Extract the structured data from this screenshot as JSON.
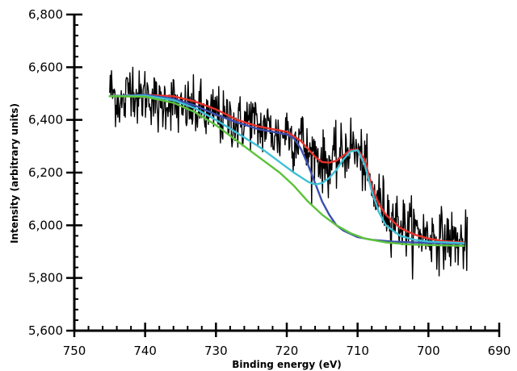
{
  "chart_data": {
    "type": "line",
    "title": "",
    "xlabel": "Binding energy (eV)",
    "ylabel": "Intensity (arbitrary units)",
    "xlim": [
      750,
      690
    ],
    "ylim": [
      5600,
      6800
    ],
    "x_reversed": true,
    "grid": false,
    "legend": "none",
    "x_ticks": [
      750,
      740,
      730,
      720,
      710,
      700,
      690
    ],
    "x_tick_labels": [
      "750",
      "740",
      "730",
      "720",
      "710",
      "700",
      "690"
    ],
    "y_ticks": [
      5600,
      5800,
      6000,
      6200,
      6400,
      6600,
      6800
    ],
    "y_tick_labels": [
      "5,600",
      "5,800",
      "6,000",
      "6,200",
      "6,400",
      "6,600",
      "6,800"
    ],
    "x_minor_step": 2,
    "y_minor_step": 40,
    "series": [
      {
        "kind": "noisy-data",
        "color": "#000000",
        "points": [
          [
            745,
            6520
          ],
          [
            744,
            6480
          ],
          [
            743,
            6450
          ],
          [
            742,
            6560
          ],
          [
            741,
            6470
          ],
          [
            740,
            6500
          ],
          [
            739,
            6490
          ],
          [
            738,
            6440
          ],
          [
            737,
            6480
          ],
          [
            736,
            6470
          ],
          [
            735,
            6420
          ],
          [
            734,
            6450
          ],
          [
            733,
            6430
          ],
          [
            732,
            6440
          ],
          [
            731,
            6400
          ],
          [
            730,
            6440
          ],
          [
            729,
            6390
          ],
          [
            728,
            6410
          ],
          [
            727,
            6380
          ],
          [
            726,
            6390
          ],
          [
            725,
            6410
          ],
          [
            724,
            6360
          ],
          [
            723,
            6380
          ],
          [
            722,
            6350
          ],
          [
            721,
            6330
          ],
          [
            720,
            6370
          ],
          [
            719,
            6320
          ],
          [
            718,
            6350
          ],
          [
            717,
            6260
          ],
          [
            716,
            6280
          ],
          [
            715,
            6240
          ],
          [
            714,
            6230
          ],
          [
            713,
            6250
          ],
          [
            712,
            6270
          ],
          [
            711,
            6310
          ],
          [
            710,
            6270
          ],
          [
            709,
            6230
          ],
          [
            708,
            6120
          ],
          [
            707,
            6100
          ],
          [
            706,
            6060
          ],
          [
            705,
            6030
          ],
          [
            704,
            6010
          ],
          [
            703,
            5990
          ],
          [
            702,
            5980
          ],
          [
            701,
            5970
          ],
          [
            700,
            5960
          ],
          [
            699,
            5955
          ],
          [
            698,
            5950
          ],
          [
            697,
            5945
          ],
          [
            696,
            5940
          ],
          [
            695,
            5930
          ]
        ],
        "noise_std": 55,
        "x_range": [
          745,
          694.5
        ]
      },
      {
        "kind": "fit-envelope",
        "color": "#e8302a",
        "points": [
          [
            745,
            6490
          ],
          [
            740,
            6495
          ],
          [
            736,
            6490
          ],
          [
            733,
            6470
          ],
          [
            730,
            6440
          ],
          [
            727,
            6400
          ],
          [
            724,
            6375
          ],
          [
            722,
            6365
          ],
          [
            720,
            6355
          ],
          [
            718,
            6320
          ],
          [
            716,
            6260
          ],
          [
            715,
            6240
          ],
          [
            714,
            6238
          ],
          [
            713,
            6245
          ],
          [
            712,
            6265
          ],
          [
            711,
            6285
          ],
          [
            710,
            6288
          ],
          [
            709,
            6250
          ],
          [
            708,
            6150
          ],
          [
            707,
            6080
          ],
          [
            706,
            6040
          ],
          [
            704,
            5990
          ],
          [
            702,
            5965
          ],
          [
            700,
            5950
          ],
          [
            698,
            5940
          ],
          [
            695,
            5935
          ]
        ]
      },
      {
        "kind": "fit-component",
        "color": "#3a4fb0",
        "points": [
          [
            745,
            6490
          ],
          [
            740,
            6495
          ],
          [
            736,
            6480
          ],
          [
            733,
            6455
          ],
          [
            730,
            6420
          ],
          [
            727,
            6390
          ],
          [
            724,
            6365
          ],
          [
            722,
            6355
          ],
          [
            720,
            6345
          ],
          [
            719,
            6330
          ],
          [
            718,
            6290
          ],
          [
            717,
            6230
          ],
          [
            716,
            6160
          ],
          [
            715,
            6090
          ],
          [
            714,
            6040
          ],
          [
            713,
            6000
          ],
          [
            712,
            5980
          ],
          [
            710,
            5955
          ],
          [
            708,
            5945
          ],
          [
            705,
            5938
          ],
          [
            700,
            5933
          ],
          [
            695,
            5930
          ]
        ]
      },
      {
        "kind": "fit-component",
        "color": "#3ec0d6",
        "points": [
          [
            745,
            6490
          ],
          [
            740,
            6492
          ],
          [
            736,
            6475
          ],
          [
            733,
            6445
          ],
          [
            730,
            6400
          ],
          [
            727,
            6350
          ],
          [
            724,
            6300
          ],
          [
            721,
            6240
          ],
          [
            719,
            6200
          ],
          [
            717,
            6165
          ],
          [
            716,
            6155
          ],
          [
            715,
            6160
          ],
          [
            714,
            6180
          ],
          [
            713,
            6210
          ],
          [
            712,
            6250
          ],
          [
            711,
            6280
          ],
          [
            710,
            6285
          ],
          [
            709,
            6230
          ],
          [
            708,
            6130
          ],
          [
            707,
            6050
          ],
          [
            706,
            6000
          ],
          [
            704,
            5960
          ],
          [
            702,
            5945
          ],
          [
            700,
            5938
          ],
          [
            695,
            5932
          ]
        ]
      },
      {
        "kind": "fit-component",
        "color": "#5cc23a",
        "points": [
          [
            745,
            6490
          ],
          [
            740,
            6488
          ],
          [
            736,
            6465
          ],
          [
            733,
            6430
          ],
          [
            730,
            6380
          ],
          [
            727,
            6320
          ],
          [
            724,
            6260
          ],
          [
            721,
            6200
          ],
          [
            719,
            6150
          ],
          [
            717,
            6090
          ],
          [
            715,
            6040
          ],
          [
            713,
            6000
          ],
          [
            711,
            5970
          ],
          [
            709,
            5950
          ],
          [
            706,
            5935
          ],
          [
            703,
            5928
          ],
          [
            700,
            5925
          ],
          [
            695,
            5922
          ]
        ]
      }
    ]
  }
}
